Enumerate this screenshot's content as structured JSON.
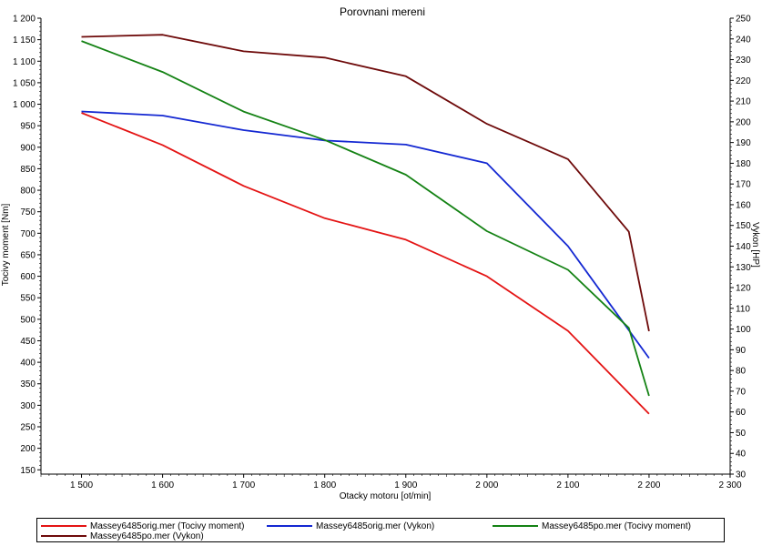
{
  "chart_data": {
    "type": "line",
    "title": "Porovnani mereni",
    "xlabel": "Otacky motoru [ot/min]",
    "ylabel_left": "Tocivy moment [Nm]",
    "ylabel_right": "Vykon [HP]",
    "xlim": [
      1450,
      2300
    ],
    "ylim_left": [
      140,
      1200
    ],
    "ylim_right": [
      30,
      250
    ],
    "x_ticks": [
      1500,
      1600,
      1700,
      1800,
      1900,
      2000,
      2100,
      2200,
      2300
    ],
    "x_tick_labels": [
      "1 500",
      "1 600",
      "1 700",
      "1 800",
      "1 900",
      "2 000",
      "2 100",
      "2 200",
      "2 300"
    ],
    "y_left_ticks": [
      150,
      200,
      250,
      300,
      350,
      400,
      450,
      500,
      550,
      600,
      650,
      700,
      750,
      800,
      850,
      900,
      950,
      1000,
      1050,
      1100,
      1150,
      1200
    ],
    "y_left_tick_labels": [
      "150",
      "200",
      "250",
      "300",
      "350",
      "400",
      "450",
      "500",
      "550",
      "600",
      "650",
      "700",
      "750",
      "800",
      "850",
      "900",
      "950",
      "1 000",
      "1 050",
      "1 100",
      "1 150",
      "1 200"
    ],
    "y_right_ticks": [
      30,
      40,
      50,
      60,
      70,
      80,
      90,
      100,
      110,
      120,
      130,
      140,
      150,
      160,
      170,
      180,
      190,
      200,
      210,
      220,
      230,
      240,
      250
    ],
    "y_right_tick_labels": [
      "30",
      "40",
      "50",
      "60",
      "70",
      "80",
      "90",
      "100",
      "110",
      "120",
      "130",
      "140",
      "150",
      "160",
      "170",
      "180",
      "190",
      "200",
      "210",
      "220",
      "230",
      "240",
      "250"
    ],
    "grid": false,
    "legend_position": "bottom",
    "series": [
      {
        "name": "Massey6485orig.mer  (Tocivy moment)",
        "axis": "left",
        "color": "#e41414",
        "x": [
          1500,
          1600,
          1700,
          1800,
          1900,
          2000,
          2100,
          2200
        ],
        "y": [
          980,
          905,
          810,
          735,
          685,
          600,
          473,
          280
        ]
      },
      {
        "name": "Massey6485orig.mer  (Vykon)",
        "axis": "right",
        "color": "#1428d2",
        "x": [
          1500,
          1600,
          1700,
          1800,
          1900,
          2000,
          2100,
          2200
        ],
        "y": [
          205,
          203,
          196,
          191,
          189,
          180,
          140,
          86
        ]
      },
      {
        "name": "Massey6485po.mer  (Tocivy moment)",
        "axis": "left",
        "color": "#148214",
        "x": [
          1500,
          1600,
          1700,
          1800,
          1900,
          2000,
          2100,
          2175,
          2200
        ],
        "y": [
          1147,
          1075,
          983,
          917,
          836,
          705,
          615,
          480,
          322
        ]
      },
      {
        "name": "Massey6485po.mer  (Vykon)",
        "axis": "right",
        "color": "#6e0a0a",
        "x": [
          1500,
          1600,
          1700,
          1800,
          1900,
          2000,
          2100,
          2175,
          2200
        ],
        "y": [
          241,
          242,
          234,
          231,
          222,
          199,
          182,
          147,
          99
        ]
      }
    ]
  }
}
